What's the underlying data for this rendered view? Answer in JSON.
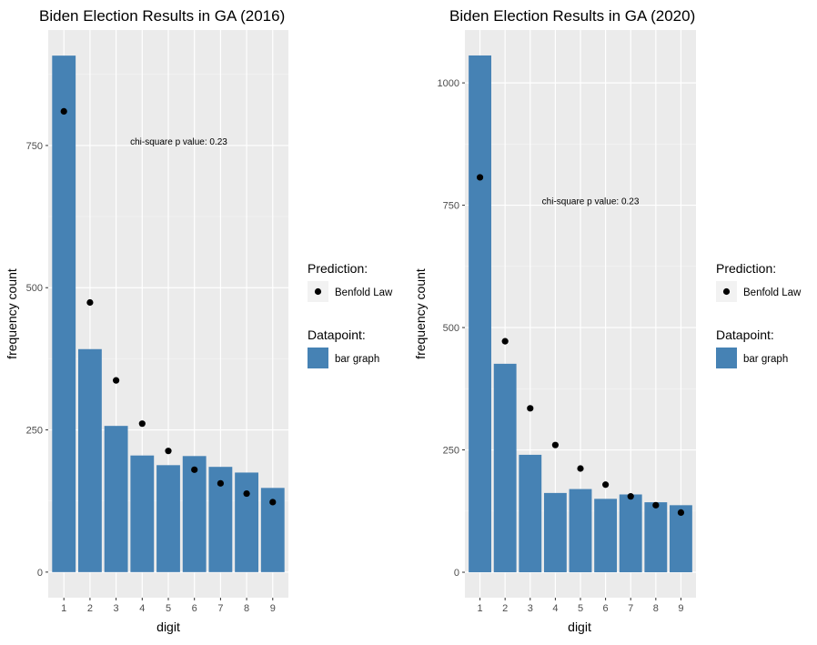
{
  "chart_data": [
    {
      "type": "bar",
      "title": "Biden Election Results in GA (2016)",
      "xlabel": "digit",
      "ylabel": "frequency count",
      "categories": [
        "1",
        "2",
        "3",
        "4",
        "5",
        "6",
        "7",
        "8",
        "9"
      ],
      "bar_values": [
        908,
        392,
        257,
        205,
        188,
        204,
        185,
        175,
        148
      ],
      "prediction_values": [
        810,
        474,
        337,
        261,
        213,
        180,
        156,
        138,
        123
      ],
      "yticks": [
        0,
        250,
        500,
        750
      ],
      "ylim": [
        -45,
        953
      ],
      "annotation": "chi-square p value: 0.23",
      "annotation_pos": [
        5.4,
        756
      ],
      "bar_color": "#4682B4",
      "point_color": "#000000",
      "panel_bg": "#EBEBEB",
      "grid": true
    },
    {
      "type": "bar",
      "title": "Biden Election Results in GA (2020)",
      "xlabel": "digit",
      "ylabel": "frequency count",
      "categories": [
        "1",
        "2",
        "3",
        "4",
        "5",
        "6",
        "7",
        "8",
        "9"
      ],
      "bar_values": [
        1056,
        426,
        240,
        162,
        170,
        150,
        159,
        143,
        137
      ],
      "prediction_values": [
        807,
        472,
        335,
        260,
        212,
        179,
        155,
        137,
        122
      ],
      "yticks": [
        0,
        250,
        500,
        750,
        1000
      ],
      "ylim": [
        -52,
        1108
      ],
      "annotation": "chi-square p value: 0.23",
      "annotation_pos": [
        5.4,
        758
      ],
      "bar_color": "#4682B4",
      "point_color": "#000000",
      "panel_bg": "#EBEBEB",
      "grid": true
    }
  ],
  "legend": {
    "prediction_title": "Prediction:",
    "prediction_label": "Benfold Law",
    "datapoint_title": "Datapoint:",
    "datapoint_label": "bar graph"
  }
}
